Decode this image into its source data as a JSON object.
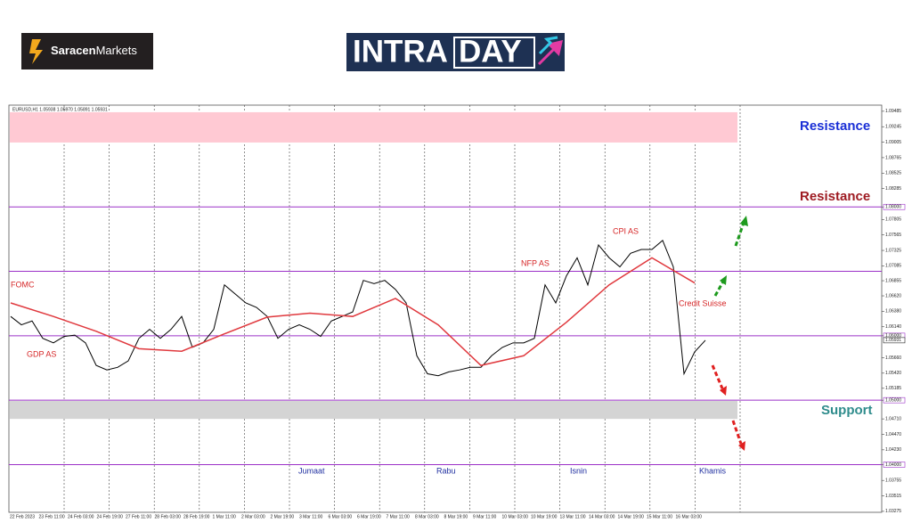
{
  "header": {
    "brand_bold": "Saracen",
    "brand_light": "Markets",
    "banner_a": "INTRA",
    "banner_b": "DAY"
  },
  "chart_data": {
    "type": "line",
    "title": "EURUSD,H1 1.05938 1.05970 1.05891 1.05931",
    "series": [
      {
        "color": "#000000",
        "values": [
          1.063,
          1.0617,
          1.0623,
          1.0596,
          1.0589,
          1.0599,
          1.0601,
          1.0589,
          1.0554,
          1.0547,
          1.0551,
          1.0561,
          1.0596,
          1.061,
          1.0596,
          1.061,
          1.063,
          1.0582,
          1.0589,
          1.061,
          1.0679,
          1.0665,
          1.0651,
          1.0644,
          1.063,
          1.0596,
          1.061,
          1.0617,
          1.061,
          1.0599,
          1.0623,
          1.063,
          1.0637,
          1.0686,
          1.0681,
          1.0686,
          1.0672,
          1.0651,
          1.0569,
          1.0541,
          1.0538,
          1.0544,
          1.0547,
          1.0551,
          1.0551,
          1.0569,
          1.0582,
          1.0589,
          1.0589,
          1.0596,
          1.0679,
          1.0651,
          1.0693,
          1.0721,
          1.0679,
          1.0741,
          1.0721,
          1.0707,
          1.0728,
          1.0734,
          1.0734,
          1.0748,
          1.0707,
          1.0541,
          1.0575,
          1.0593
        ]
      },
      {
        "color": "#e0393e",
        "values": [
          1.0651,
          1.063,
          1.0607,
          1.058,
          1.0576,
          1.0603,
          1.0629,
          1.0635,
          1.063,
          1.0658,
          1.0617,
          1.0554,
          1.0569,
          1.0621,
          1.0679,
          1.0721,
          1.0682
        ]
      }
    ],
    "ylim": [
      1.0326,
      1.0958
    ],
    "yticks": [
      {
        "value": 1.09485,
        "label": "1.09485"
      },
      {
        "value": 1.09245,
        "label": "1.09245"
      },
      {
        "value": 1.09005,
        "label": "1.09005"
      },
      {
        "value": 1.08765,
        "label": "1.08765"
      },
      {
        "value": 1.08525,
        "label": "1.08525"
      },
      {
        "value": 1.08285,
        "label": "1.08285"
      },
      {
        "value": 1.08,
        "label": "1.08000"
      },
      {
        "value": 1.07805,
        "label": "1.07805"
      },
      {
        "value": 1.07565,
        "label": "1.07565"
      },
      {
        "value": 1.07325,
        "label": "1.07325"
      },
      {
        "value": 1.07085,
        "label": "1.07085"
      },
      {
        "value": 1.06855,
        "label": "1.06855"
      },
      {
        "value": 1.0662,
        "label": "1.06620"
      },
      {
        "value": 1.0638,
        "label": "1.06380"
      },
      {
        "value": 1.0614,
        "label": "1.06140"
      },
      {
        "value": 1.06,
        "label": "1.06000"
      },
      {
        "value": 1.0566,
        "label": "1.05660"
      },
      {
        "value": 1.0542,
        "label": "1.05420"
      },
      {
        "value": 1.05185,
        "label": "1.05185"
      },
      {
        "value": 1.05,
        "label": "1.05000"
      },
      {
        "value": 1.0471,
        "label": "1.04710"
      },
      {
        "value": 1.0447,
        "label": "1.04470"
      },
      {
        "value": 1.0423,
        "label": "1.04230"
      },
      {
        "value": 1.04,
        "label": "1.04000"
      },
      {
        "value": 1.03755,
        "label": "1.03755"
      },
      {
        "value": 1.03515,
        "label": "1.03515"
      },
      {
        "value": 1.03275,
        "label": "1.03275"
      }
    ],
    "current_price": 1.05931,
    "levels": [
      1.08,
      1.07,
      1.06,
      1.05,
      1.04
    ],
    "level_color": "#9b30c8",
    "zones": [
      {
        "from": 1.09,
        "to": 1.0947,
        "color": "#ffc9d3"
      },
      {
        "from": 1.0471,
        "to": 1.0499,
        "color": "#d4d4d4"
      }
    ],
    "xtick_labels": [
      "22 Feb 2023",
      "23 Feb 11:00",
      "24 Feb 03:00",
      "24 Feb 19:00",
      "27 Feb 11:00",
      "28 Feb 03:00",
      "28 Feb 19:00",
      "1 Mar 11:00",
      "2 Mar 03:00",
      "2 Mar 19:00",
      "3 Mar 11:00",
      "6 Mar 03:00",
      "6 Mar 19:00",
      "7 Mar 11:00",
      "8 Mar 03:00",
      "8 Mar 19:00",
      "9 Mar 11:00",
      "10 Mar 03:00",
      "10 Mar 19:00",
      "13 Mar 11:00",
      "14 Mar 03:00",
      "14 Mar 19:00",
      "15 Mar 11:00",
      "16 Mar 03:00"
    ],
    "zone_labels": [
      "Resistance",
      "Resistance",
      "Support"
    ],
    "annotations": [
      "FOMC",
      "GDP AS",
      "NFP AS",
      "CPI AS",
      "Credit Suisse"
    ],
    "day_labels": [
      "Jumaat",
      "Rabu",
      "Isnin",
      "Khamis"
    ]
  }
}
